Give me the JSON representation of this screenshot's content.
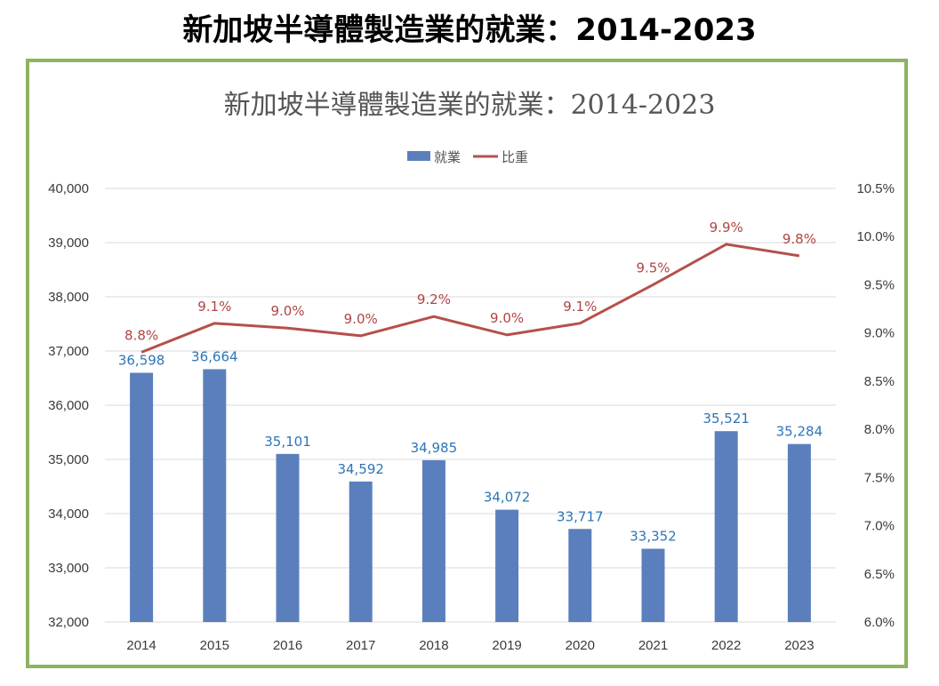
{
  "page_title": "新加坡半導體製造業的就業：2014-2023",
  "colors": {
    "bar": "#5b7fbd",
    "line": "#b5504a",
    "bar_label": "#2e75b6",
    "line_label": "#b04444",
    "frame": "#8db35f",
    "grid": "#d9d9d9"
  },
  "chart_data": {
    "type": "bar",
    "title": "新加坡半導體製造業的就業：2014-2023",
    "categories": [
      "2014",
      "2015",
      "2016",
      "2017",
      "2018",
      "2019",
      "2020",
      "2021",
      "2022",
      "2023"
    ],
    "series": [
      {
        "name": "就業",
        "type": "bar",
        "axis": "left",
        "values": [
          36598,
          36664,
          35101,
          34592,
          34985,
          34072,
          33717,
          33352,
          35521,
          35284
        ],
        "labels": [
          "36,598",
          "36,664",
          "35,101",
          "34,592",
          "34,985",
          "34,072",
          "33,717",
          "33,352",
          "35,521",
          "35,284"
        ]
      },
      {
        "name": "比重",
        "type": "line",
        "axis": "right",
        "values": [
          8.8,
          9.1,
          9.05,
          8.97,
          9.17,
          8.98,
          9.1,
          9.5,
          9.92,
          9.8
        ],
        "labels": [
          "8.8%",
          "9.1%",
          "9.0%",
          "9.0%",
          "9.2%",
          "9.0%",
          "9.1%",
          "9.5%",
          "9.9%",
          "9.8%"
        ]
      }
    ],
    "ylim": [
      32000,
      40000
    ],
    "y_ticks": [
      "32,000",
      "33,000",
      "34,000",
      "35,000",
      "36,000",
      "37,000",
      "38,000",
      "39,000",
      "40,000"
    ],
    "y2lim": [
      6.0,
      10.5
    ],
    "y2_ticks": [
      "6.0%",
      "6.5%",
      "7.0%",
      "7.5%",
      "8.0%",
      "8.5%",
      "9.0%",
      "9.5%",
      "10.0%",
      "10.5%"
    ],
    "legend_position": "top-center",
    "grid": true
  }
}
